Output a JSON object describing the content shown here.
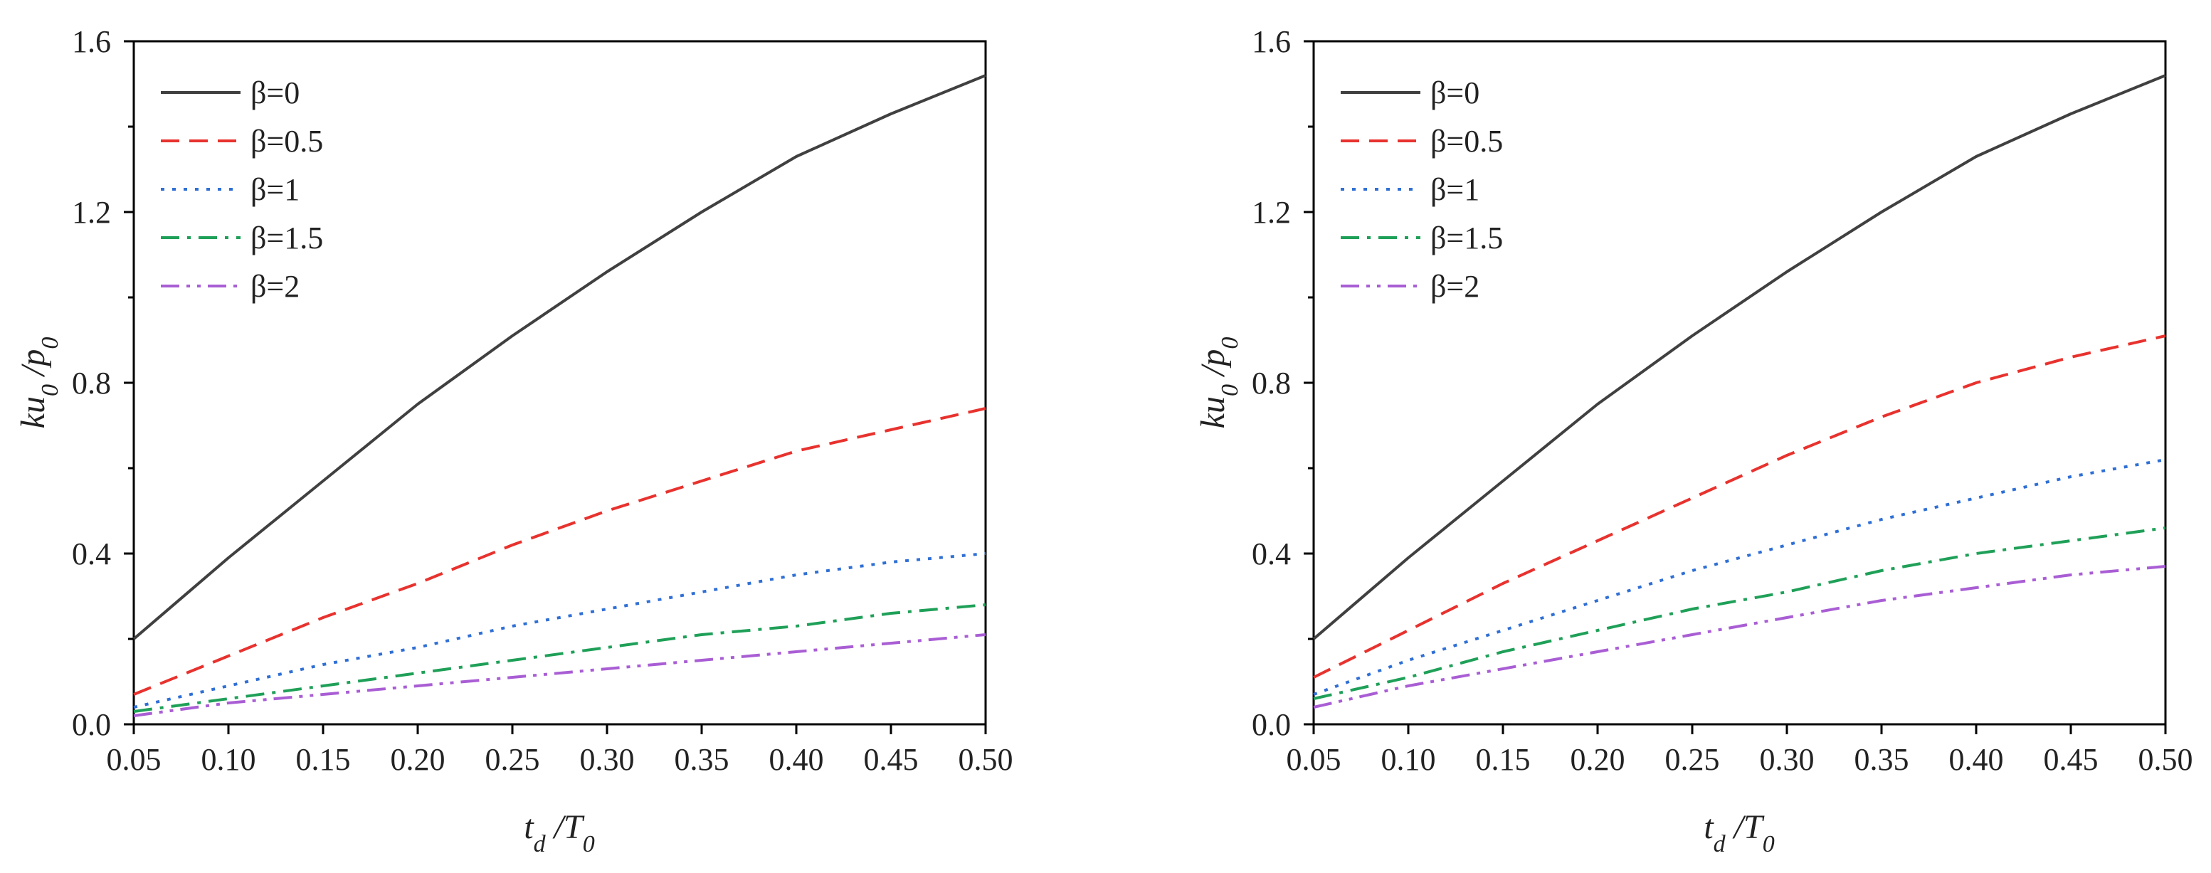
{
  "chart_data": [
    {
      "type": "line",
      "title": "",
      "xlabel": {
        "main": "t",
        "sub": "d",
        "rest": " /T",
        "sub2": "0"
      },
      "ylabel": {
        "a": "ku",
        "sub": "0",
        "b": " /p",
        "sub2": "0"
      },
      "xlim": [
        0.05,
        0.5
      ],
      "ylim": [
        0.0,
        1.6
      ],
      "xticks": [
        "0.05",
        "0.10",
        "0.15",
        "0.20",
        "0.25",
        "0.30",
        "0.35",
        "0.40",
        "0.45",
        "0.50"
      ],
      "xtick_values": [
        0.05,
        0.1,
        0.15,
        0.2,
        0.25,
        0.3,
        0.35,
        0.4,
        0.45,
        0.5
      ],
      "yticks": [
        "0.0",
        "0.4",
        "0.8",
        "1.2",
        "1.6"
      ],
      "ytick_values": [
        0.0,
        0.4,
        0.8,
        1.2,
        1.6
      ],
      "ytick_minor_values": [
        0.2,
        0.6,
        1.0,
        1.4
      ],
      "legend_position": "top-left",
      "x": [
        0.05,
        0.1,
        0.15,
        0.2,
        0.25,
        0.3,
        0.35,
        0.4,
        0.45,
        0.5
      ],
      "series": [
        {
          "name": "β=0",
          "color": "#404040",
          "dash": "solid",
          "values": [
            0.2,
            0.39,
            0.57,
            0.75,
            0.91,
            1.06,
            1.2,
            1.33,
            1.43,
            1.52
          ]
        },
        {
          "name": "β=0.5",
          "color": "#e8322e",
          "dash": "dash",
          "values": [
            0.07,
            0.16,
            0.25,
            0.33,
            0.42,
            0.5,
            0.57,
            0.64,
            0.69,
            0.74
          ]
        },
        {
          "name": "β=1",
          "color": "#2f6fd4",
          "dash": "dot",
          "values": [
            0.04,
            0.09,
            0.14,
            0.18,
            0.23,
            0.27,
            0.31,
            0.35,
            0.38,
            0.4
          ]
        },
        {
          "name": "β=1.5",
          "color": "#1fa058",
          "dash": "dashdot",
          "values": [
            0.03,
            0.06,
            0.09,
            0.12,
            0.15,
            0.18,
            0.21,
            0.23,
            0.26,
            0.28
          ]
        },
        {
          "name": "β=2",
          "color": "#a95ed4",
          "dash": "dashdotdot",
          "values": [
            0.02,
            0.05,
            0.07,
            0.09,
            0.11,
            0.13,
            0.15,
            0.17,
            0.19,
            0.21
          ]
        }
      ]
    },
    {
      "type": "line",
      "title": "",
      "xlabel": {
        "main": "t",
        "sub": "d",
        "rest": " /T",
        "sub2": "0"
      },
      "ylabel": {
        "a": "ku",
        "sub": "0",
        "b": " /p",
        "sub2": "0"
      },
      "xlim": [
        0.05,
        0.5
      ],
      "ylim": [
        0.0,
        1.6
      ],
      "xticks": [
        "0.05",
        "0.10",
        "0.15",
        "0.20",
        "0.25",
        "0.30",
        "0.35",
        "0.40",
        "0.45",
        "0.50"
      ],
      "xtick_values": [
        0.05,
        0.1,
        0.15,
        0.2,
        0.25,
        0.3,
        0.35,
        0.4,
        0.45,
        0.5
      ],
      "yticks": [
        "0.0",
        "0.4",
        "0.8",
        "1.2",
        "1.6"
      ],
      "ytick_values": [
        0.0,
        0.4,
        0.8,
        1.2,
        1.6
      ],
      "ytick_minor_values": [
        0.2,
        0.6,
        1.0,
        1.4
      ],
      "legend_position": "top-left",
      "x": [
        0.05,
        0.1,
        0.15,
        0.2,
        0.25,
        0.3,
        0.35,
        0.4,
        0.45,
        0.5
      ],
      "series": [
        {
          "name": "β=0",
          "color": "#404040",
          "dash": "solid",
          "values": [
            0.2,
            0.39,
            0.57,
            0.75,
            0.91,
            1.06,
            1.2,
            1.33,
            1.43,
            1.52
          ]
        },
        {
          "name": "β=0.5",
          "color": "#e8322e",
          "dash": "dash",
          "values": [
            0.11,
            0.22,
            0.33,
            0.43,
            0.53,
            0.63,
            0.72,
            0.8,
            0.86,
            0.91
          ]
        },
        {
          "name": "β=1",
          "color": "#2f6fd4",
          "dash": "dot",
          "values": [
            0.07,
            0.15,
            0.22,
            0.29,
            0.36,
            0.42,
            0.48,
            0.53,
            0.58,
            0.62
          ]
        },
        {
          "name": "β=1.5",
          "color": "#1fa058",
          "dash": "dashdot",
          "values": [
            0.06,
            0.11,
            0.17,
            0.22,
            0.27,
            0.31,
            0.36,
            0.4,
            0.43,
            0.46
          ]
        },
        {
          "name": "β=2",
          "color": "#a95ed4",
          "dash": "dashdotdot",
          "values": [
            0.04,
            0.09,
            0.13,
            0.17,
            0.21,
            0.25,
            0.29,
            0.32,
            0.35,
            0.37
          ]
        }
      ]
    }
  ]
}
